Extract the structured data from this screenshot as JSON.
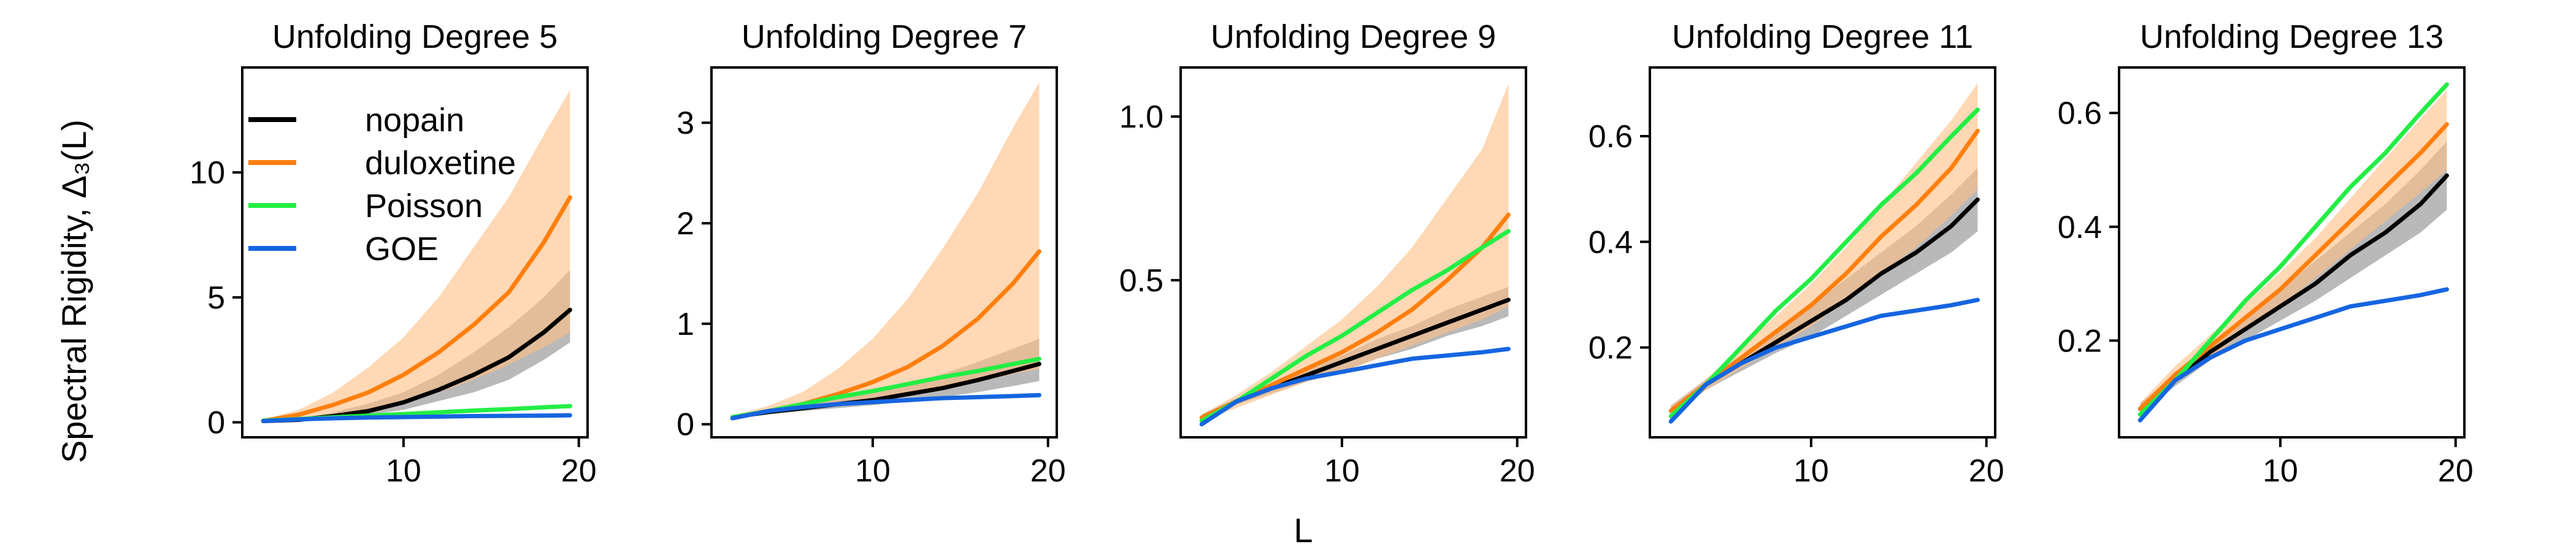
{
  "figure": {
    "ylabel": "Spectral Rigidity, Δ₃(L)",
    "xlabel": "L"
  },
  "legend": {
    "placement": "upper-left of first panel",
    "entries": [
      {
        "name": "nopain",
        "color": "#000000"
      },
      {
        "name": "duloxetine",
        "color": "#ff7f0e"
      },
      {
        "name": "Poisson",
        "color": "#22ee44"
      },
      {
        "name": "GOE",
        "color": "#1565e0"
      }
    ]
  },
  "colors": {
    "nopain_band": "#7f7f7f",
    "duloxetine_band": "#ffbe84"
  },
  "chart_data": [
    {
      "type": "line",
      "title": "Unfolding Degree 5",
      "xlim": [
        0.8,
        20.5
      ],
      "ylim": [
        -0.6,
        14.2
      ],
      "xticks": [
        10,
        20
      ],
      "yticks": [
        0,
        5,
        10
      ],
      "x": [
        2,
        4,
        6,
        8,
        10,
        12,
        14,
        16,
        18,
        19.5
      ],
      "series": [
        {
          "name": "nopain",
          "values": [
            0.05,
            0.1,
            0.25,
            0.45,
            0.8,
            1.3,
            1.9,
            2.6,
            3.6,
            4.5
          ],
          "lower": [
            0.03,
            0.07,
            0.15,
            0.3,
            0.5,
            0.85,
            1.2,
            1.7,
            2.5,
            3.2
          ],
          "upper": [
            0.08,
            0.15,
            0.4,
            0.75,
            1.2,
            1.9,
            2.8,
            3.8,
            5.0,
            6.1
          ]
        },
        {
          "name": "duloxetine",
          "values": [
            0.06,
            0.3,
            0.7,
            1.2,
            1.9,
            2.8,
            3.9,
            5.2,
            7.2,
            9.0
          ],
          "lower": [
            0.03,
            0.15,
            0.3,
            0.55,
            0.8,
            1.2,
            1.7,
            2.3,
            3.0,
            3.6
          ],
          "upper": [
            0.1,
            0.5,
            1.2,
            2.2,
            3.4,
            5.0,
            7.0,
            9.0,
            11.5,
            13.3
          ]
        },
        {
          "name": "Poisson",
          "values": [
            0.07,
            0.13,
            0.2,
            0.27,
            0.33,
            0.4,
            0.47,
            0.53,
            0.6,
            0.65
          ]
        },
        {
          "name": "GOE",
          "values": [
            0.05,
            0.12,
            0.16,
            0.19,
            0.21,
            0.23,
            0.25,
            0.26,
            0.27,
            0.28
          ]
        }
      ]
    },
    {
      "type": "line",
      "title": "Unfolding Degree 7",
      "xlim": [
        0.8,
        20.5
      ],
      "ylim": [
        -0.13,
        3.55
      ],
      "xticks": [
        10,
        20
      ],
      "yticks": [
        0,
        1,
        2,
        3
      ],
      "x": [
        2,
        4,
        6,
        8,
        10,
        12,
        14,
        16,
        18,
        19.5
      ],
      "series": [
        {
          "name": "nopain",
          "values": [
            0.07,
            0.12,
            0.16,
            0.2,
            0.24,
            0.3,
            0.36,
            0.44,
            0.53,
            0.6
          ],
          "lower": [
            0.06,
            0.1,
            0.13,
            0.16,
            0.19,
            0.23,
            0.27,
            0.32,
            0.38,
            0.43
          ],
          "upper": [
            0.08,
            0.15,
            0.2,
            0.26,
            0.32,
            0.4,
            0.5,
            0.62,
            0.75,
            0.85
          ]
        },
        {
          "name": "duloxetine",
          "values": [
            0.07,
            0.13,
            0.2,
            0.3,
            0.42,
            0.57,
            0.78,
            1.05,
            1.4,
            1.72
          ],
          "lower": [
            0.06,
            0.1,
            0.14,
            0.19,
            0.25,
            0.3,
            0.35,
            0.42,
            0.5,
            0.55
          ],
          "upper": [
            0.09,
            0.18,
            0.32,
            0.55,
            0.85,
            1.25,
            1.75,
            2.3,
            2.95,
            3.4
          ]
        },
        {
          "name": "Poisson",
          "values": [
            0.07,
            0.13,
            0.2,
            0.27,
            0.33,
            0.4,
            0.47,
            0.53,
            0.6,
            0.65
          ]
        },
        {
          "name": "GOE",
          "values": [
            0.06,
            0.13,
            0.17,
            0.2,
            0.22,
            0.24,
            0.26,
            0.27,
            0.28,
            0.29
          ]
        }
      ]
    },
    {
      "type": "line",
      "title": "Unfolding Degree 9",
      "xlim": [
        0.8,
        20.5
      ],
      "ylim": [
        0.02,
        1.15
      ],
      "xticks": [
        10,
        20
      ],
      "yticks": [
        0.5,
        1.0
      ],
      "x": [
        2,
        4,
        6,
        8,
        10,
        12,
        14,
        16,
        18,
        19.5
      ],
      "series": [
        {
          "name": "nopain",
          "values": [
            0.08,
            0.13,
            0.17,
            0.21,
            0.25,
            0.29,
            0.33,
            0.37,
            0.41,
            0.44
          ],
          "lower": [
            0.07,
            0.12,
            0.155,
            0.19,
            0.22,
            0.26,
            0.29,
            0.33,
            0.36,
            0.39
          ],
          "upper": [
            0.09,
            0.14,
            0.185,
            0.23,
            0.27,
            0.32,
            0.36,
            0.41,
            0.45,
            0.48
          ]
        },
        {
          "name": "duloxetine",
          "values": [
            0.08,
            0.13,
            0.18,
            0.23,
            0.28,
            0.34,
            0.41,
            0.5,
            0.6,
            0.7
          ],
          "lower": [
            0.07,
            0.11,
            0.15,
            0.19,
            0.22,
            0.26,
            0.3,
            0.34,
            0.38,
            0.42
          ],
          "upper": [
            0.09,
            0.15,
            0.22,
            0.3,
            0.38,
            0.48,
            0.6,
            0.75,
            0.9,
            1.1
          ]
        },
        {
          "name": "Poisson",
          "values": [
            0.07,
            0.13,
            0.2,
            0.27,
            0.33,
            0.4,
            0.47,
            0.53,
            0.6,
            0.65
          ]
        },
        {
          "name": "GOE",
          "values": [
            0.06,
            0.13,
            0.17,
            0.2,
            0.22,
            0.24,
            0.26,
            0.27,
            0.28,
            0.29
          ]
        }
      ]
    },
    {
      "type": "line",
      "title": "Unfolding Degree 11",
      "xlim": [
        0.8,
        20.5
      ],
      "ylim": [
        0.03,
        0.73
      ],
      "xticks": [
        10,
        20
      ],
      "yticks": [
        0.2,
        0.4,
        0.6
      ],
      "x": [
        2,
        4,
        6,
        8,
        10,
        12,
        14,
        16,
        18,
        19.5
      ],
      "series": [
        {
          "name": "nopain",
          "values": [
            0.08,
            0.13,
            0.17,
            0.21,
            0.25,
            0.29,
            0.34,
            0.38,
            0.43,
            0.48
          ],
          "lower": [
            0.07,
            0.12,
            0.155,
            0.19,
            0.22,
            0.26,
            0.3,
            0.34,
            0.38,
            0.42
          ],
          "upper": [
            0.09,
            0.14,
            0.185,
            0.23,
            0.28,
            0.33,
            0.38,
            0.43,
            0.49,
            0.54
          ]
        },
        {
          "name": "duloxetine",
          "values": [
            0.08,
            0.13,
            0.18,
            0.23,
            0.28,
            0.34,
            0.41,
            0.47,
            0.54,
            0.61
          ],
          "lower": [
            0.07,
            0.12,
            0.16,
            0.2,
            0.24,
            0.29,
            0.34,
            0.39,
            0.45,
            0.5
          ],
          "upper": [
            0.09,
            0.14,
            0.2,
            0.26,
            0.32,
            0.39,
            0.47,
            0.55,
            0.63,
            0.7
          ]
        },
        {
          "name": "Poisson",
          "values": [
            0.07,
            0.13,
            0.2,
            0.27,
            0.33,
            0.4,
            0.47,
            0.53,
            0.6,
            0.65
          ]
        },
        {
          "name": "GOE",
          "values": [
            0.06,
            0.13,
            0.17,
            0.2,
            0.22,
            0.24,
            0.26,
            0.27,
            0.28,
            0.29
          ]
        }
      ]
    },
    {
      "type": "line",
      "title": "Unfolding Degree 13",
      "xlim": [
        0.8,
        20.5
      ],
      "ylim": [
        0.03,
        0.68
      ],
      "xticks": [
        10,
        20
      ],
      "yticks": [
        0.2,
        0.4,
        0.6
      ],
      "x": [
        2,
        4,
        6,
        8,
        10,
        12,
        14,
        16,
        18,
        19.5
      ],
      "series": [
        {
          "name": "nopain",
          "values": [
            0.08,
            0.13,
            0.18,
            0.22,
            0.26,
            0.3,
            0.35,
            0.39,
            0.44,
            0.49
          ],
          "lower": [
            0.07,
            0.12,
            0.165,
            0.2,
            0.235,
            0.27,
            0.31,
            0.35,
            0.39,
            0.43
          ],
          "upper": [
            0.09,
            0.14,
            0.195,
            0.24,
            0.29,
            0.34,
            0.39,
            0.44,
            0.5,
            0.55
          ]
        },
        {
          "name": "duloxetine",
          "values": [
            0.08,
            0.14,
            0.19,
            0.24,
            0.29,
            0.35,
            0.41,
            0.47,
            0.53,
            0.58
          ],
          "lower": [
            0.07,
            0.125,
            0.17,
            0.215,
            0.26,
            0.31,
            0.36,
            0.41,
            0.46,
            0.5
          ],
          "upper": [
            0.09,
            0.155,
            0.21,
            0.265,
            0.32,
            0.38,
            0.45,
            0.52,
            0.59,
            0.64
          ]
        },
        {
          "name": "Poisson",
          "values": [
            0.07,
            0.13,
            0.2,
            0.27,
            0.33,
            0.4,
            0.47,
            0.53,
            0.6,
            0.65
          ]
        },
        {
          "name": "GOE",
          "values": [
            0.06,
            0.13,
            0.17,
            0.2,
            0.22,
            0.24,
            0.26,
            0.27,
            0.28,
            0.29
          ]
        }
      ]
    }
  ]
}
